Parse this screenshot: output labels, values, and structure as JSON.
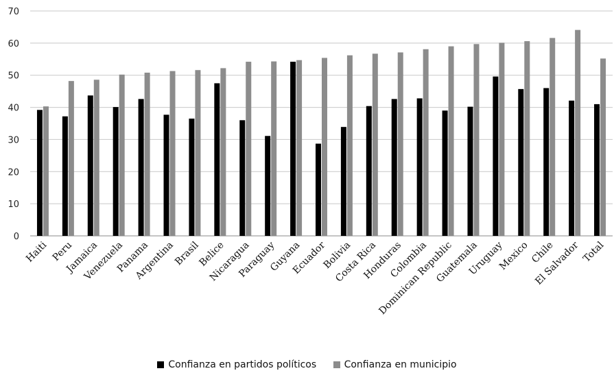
{
  "chart_data": {
    "type": "bar",
    "title": "",
    "xlabel": "",
    "ylabel": "",
    "ylim": [
      0,
      70
    ],
    "yticks": [
      0,
      10,
      20,
      30,
      40,
      50,
      60,
      70
    ],
    "grid": true,
    "legend_position": "bottom",
    "categories": [
      "Haiti",
      "Peru",
      "Jamaica",
      "Venezuela",
      "Panama",
      "Argentina",
      "Brasil",
      "Belice",
      "Nicaragua",
      "Paraguay",
      "Guyana",
      "Ecuador",
      "Bolivia",
      "Costa Rica",
      "Honduras",
      "Colombia",
      "Dominican Republic",
      "Guatemala",
      "Uruguay",
      "Mexico",
      "Chile",
      "El Salvador",
      "Total"
    ],
    "series": [
      {
        "name": "Confianza en partidos políticos",
        "color": "#000000",
        "values": [
          39.2,
          37.2,
          43.7,
          40.1,
          42.6,
          37.7,
          36.5,
          47.5,
          36.0,
          31.1,
          54.2,
          28.7,
          33.9,
          40.4,
          42.6,
          42.8,
          39.0,
          40.2,
          49.6,
          45.7,
          46.0,
          42.1,
          41.0
        ]
      },
      {
        "name": "Confianza en municipio",
        "color": "#8c8c8c",
        "values": [
          40.3,
          48.2,
          48.6,
          50.2,
          50.8,
          51.3,
          51.6,
          52.2,
          54.2,
          54.3,
          54.7,
          55.4,
          56.2,
          56.7,
          57.1,
          58.1,
          59.0,
          59.7,
          60.1,
          60.6,
          61.6,
          64.1,
          55.2
        ]
      }
    ]
  }
}
